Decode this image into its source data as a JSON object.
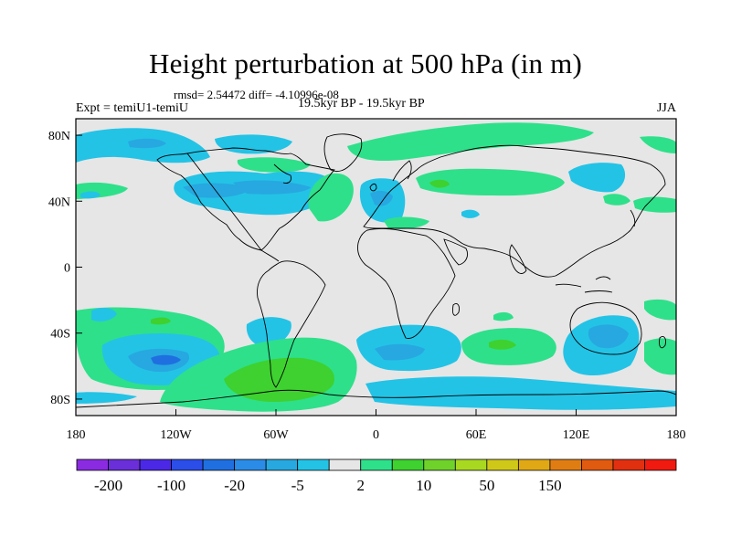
{
  "title": "Height perturbation at 500 hPa (in m)",
  "stats": "rmsd= 2.54472 diff= -4.10996e-08",
  "experiment": "Expt = temiU1-temiU",
  "period": "19.5kyr BP - 19.5kyr BP",
  "season": "JJA",
  "axes": {
    "x_ticks": [
      {
        "lon": -180,
        "label": "180"
      },
      {
        "lon": -120,
        "label": "120W"
      },
      {
        "lon": -60,
        "label": "60W"
      },
      {
        "lon": 0,
        "label": "0"
      },
      {
        "lon": 60,
        "label": "60E"
      },
      {
        "lon": 120,
        "label": "120E"
      },
      {
        "lon": 180,
        "label": "180"
      }
    ],
    "y_ticks": [
      {
        "lat": 80,
        "label": "80N"
      },
      {
        "lat": 40,
        "label": "40N"
      },
      {
        "lat": 0,
        "label": "0"
      },
      {
        "lat": -40,
        "label": "40S"
      },
      {
        "lat": -80,
        "label": "80S"
      }
    ]
  },
  "colors": {
    "missing": "#e6e6e6",
    "coast": "#000000"
  },
  "colorbar": {
    "colors": [
      "#8a2be2",
      "#6a2fd9",
      "#4b28e6",
      "#2b4de8",
      "#1f6fe0",
      "#2a8ce6",
      "#27a8e0",
      "#23c3e6",
      "#e6e6e6",
      "#2ee08a",
      "#3ed12f",
      "#6fd22a",
      "#a8d820",
      "#d0c818",
      "#e0a814",
      "#e07d12",
      "#e05a10",
      "#e03010",
      "#f01a10"
    ],
    "labels": [
      {
        "index": 1,
        "text": "-200"
      },
      {
        "index": 3,
        "text": "-100"
      },
      {
        "index": 5,
        "text": "-20"
      },
      {
        "index": 7,
        "text": "-5"
      },
      {
        "index": 9,
        "text": "2"
      },
      {
        "index": 11,
        "text": "10"
      },
      {
        "index": 13,
        "text": "50"
      },
      {
        "index": 15,
        "text": "150"
      }
    ]
  }
}
